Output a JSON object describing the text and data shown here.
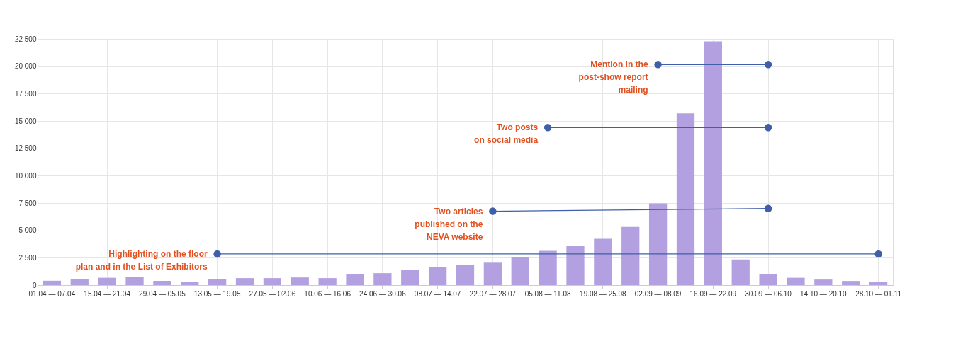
{
  "chart_data": {
    "type": "bar",
    "categories": [
      "01.04 — 07.04",
      null,
      "15.04 — 21.04",
      null,
      "29.04 — 05.05",
      null,
      "13.05 — 19.05",
      null,
      "27.05 — 02.06",
      null,
      "10.06 — 16.06",
      null,
      "24.06 — 30.06",
      null,
      "08.07 — 14.07",
      null,
      "22.07 — 28.07",
      null,
      "05.08 — 11.08",
      null,
      "19.08 — 25.08",
      null,
      "02.09 — 08.09",
      null,
      "16.09 — 22.09",
      null,
      "30.09 — 06.10",
      null,
      "14.10 — 20.10",
      null,
      "28.10 — 01.11"
    ],
    "series": [
      {
        "color": "#b3a0e0",
        "values": [
          400,
          580,
          670,
          740,
          380,
          290,
          580,
          640,
          640,
          700,
          640,
          1000,
          1090,
          1380,
          1670,
          1850,
          2050,
          2530,
          3140,
          3560,
          4230,
          5320,
          7470,
          15690,
          22280,
          2350,
          990,
          670,
          510,
          380,
          260
        ]
      },
      {
        "type": "line",
        "color": "#3f5fa8",
        "marker": "circle",
        "x": [
          "13.05 — 19.05",
          "28.10 — 01.11"
        ],
        "values": [
          2850,
          2850
        ]
      },
      {
        "type": "line",
        "color": "#3f5fa8",
        "marker": "circle",
        "x": [
          "22.07 — 28.07",
          "30.09 — 06.10"
        ],
        "values": [
          6750,
          7000
        ]
      },
      {
        "type": "line",
        "color": "#3f5fa8",
        "marker": "circle",
        "x": [
          "05.08 — 11.08",
          "30.09 — 06.10"
        ],
        "values": [
          14400,
          14400
        ]
      },
      {
        "type": "line",
        "color": "#3f5fa8",
        "marker": "circle",
        "x": [
          "02.09 — 08.09",
          "30.09 — 06.10"
        ],
        "values": [
          20150,
          20150
        ]
      }
    ],
    "ylim": [
      0,
      22500
    ],
    "yticks": [
      0,
      {
        "value": 2500,
        "label": "2 500"
      },
      {
        "value": 5000,
        "label": "5 000"
      },
      {
        "value": 7500,
        "label": "7 500"
      },
      {
        "value": 10000,
        "label": "10 000"
      },
      {
        "value": 12500,
        "label": "12 500"
      },
      {
        "value": 15000,
        "label": "15 000"
      },
      {
        "value": 17500,
        "label": "17 500"
      },
      {
        "value": 20000,
        "label": "20 000"
      },
      {
        "value": 22500,
        "label": "22 500"
      }
    ],
    "grid": true,
    "annotations": [
      {
        "text": "Highlighting on the floor\nplan and in the List of Exhibitors",
        "x": "13.05 — 19.05",
        "y": 2850
      },
      {
        "text": "Two articles\npublished on the\nNEVA website",
        "x": "22.07 — 28.07",
        "y": 6750
      },
      {
        "text": "Two posts\non social media",
        "x": "05.08 — 11.08",
        "y": 14400
      },
      {
        "text": "Mention in the\npost-show report\nmailing",
        "x": "02.09 — 08.09",
        "y": 20150
      }
    ]
  }
}
